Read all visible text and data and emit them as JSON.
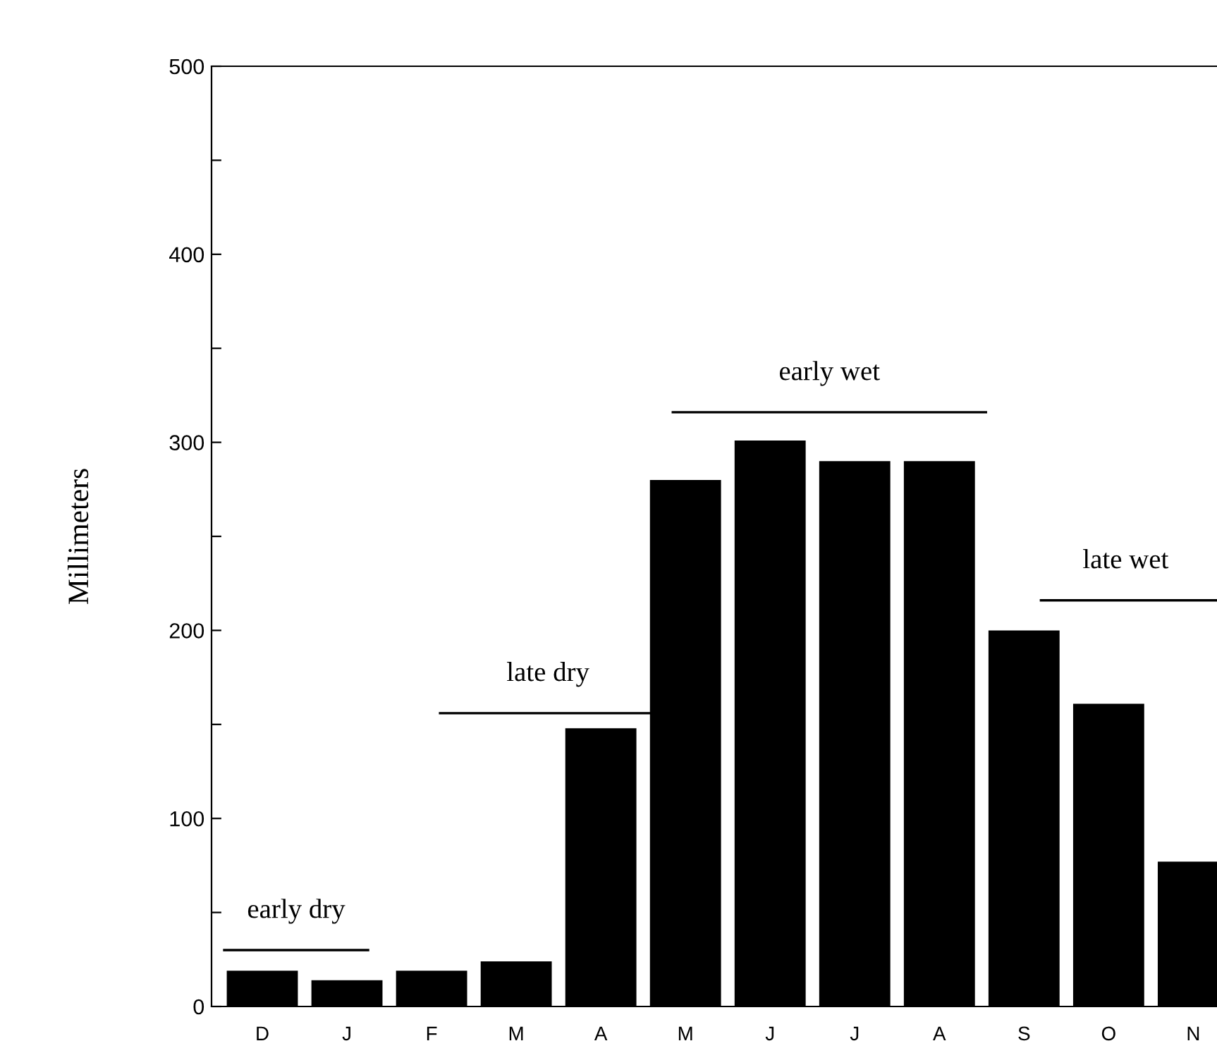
{
  "chart_data": {
    "type": "bar",
    "ylabel": "Millimeters",
    "categories": [
      "D",
      "J",
      "F",
      "M",
      "A",
      "M",
      "J",
      "J",
      "A",
      "S",
      "O",
      "N"
    ],
    "values": [
      19,
      14,
      19,
      24,
      148,
      280,
      301,
      290,
      290,
      200,
      161,
      77
    ],
    "color": "#000000",
    "ylim": [
      0,
      500
    ],
    "yticks": [
      0,
      {
        "value": 50,
        "label": null
      },
      100,
      {
        "value": 150,
        "label": null
      },
      200,
      {
        "value": 250,
        "label": null
      },
      300,
      {
        "value": 350,
        "label": null
      },
      400,
      {
        "value": 450,
        "label": null
      },
      500
    ],
    "annotations": [
      "early dry",
      "late dry",
      "early wet",
      "late wet"
    ],
    "grid": false,
    "legend": false
  }
}
